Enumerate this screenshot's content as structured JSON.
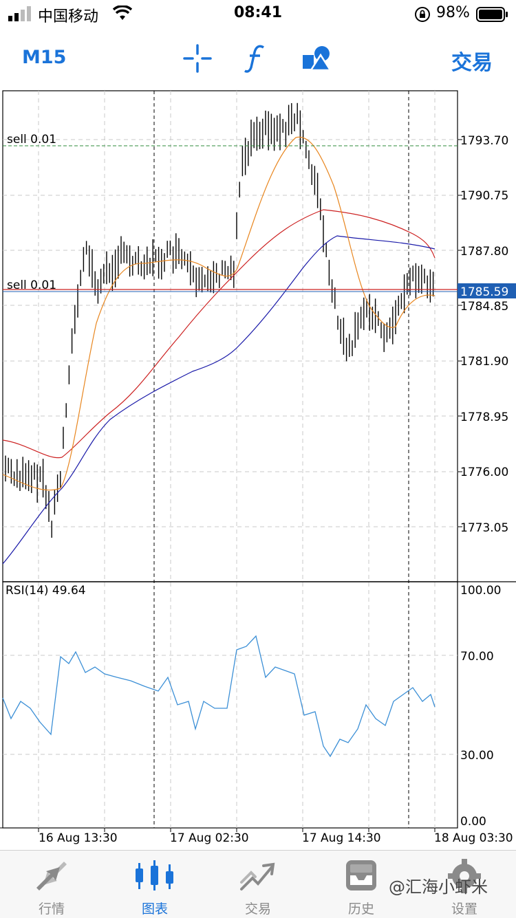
{
  "status": {
    "carrier": "中国移动",
    "time": "08:41",
    "battery": "98%"
  },
  "toolbar": {
    "timeframe": "M15",
    "trade_label": "交易",
    "icons": [
      "crosshair-icon",
      "function-icon",
      "objects-icon"
    ]
  },
  "chart": {
    "price_levels": [
      "1793.70",
      "1790.75",
      "1787.80",
      "1784.85",
      "1781.90",
      "1778.95",
      "1776.00",
      "1773.05"
    ],
    "current_price": "1785.59",
    "orders": [
      {
        "label": "sell 0.01",
        "price": 1793.4
      },
      {
        "label": "sell 0.01",
        "price": 1785.59
      }
    ],
    "rsi_label": "RSI(14) 49.64",
    "rsi_levels": [
      "100.00",
      "70.00",
      "30.00",
      "0.00"
    ],
    "time_labels": [
      "16 Aug 13:30",
      "17 Aug 02:30",
      "17 Aug 14:30",
      "18 Aug 03:30"
    ],
    "colors": {
      "ma_fast": "#e8861f",
      "ma_mid": "#cc2020",
      "ma_slow": "#1818a8",
      "rsi": "#3b8fd6",
      "price_tag": "#1f5fb3",
      "accent": "#1a73d9"
    }
  },
  "tabs": [
    {
      "label": "行情",
      "icon": "quotes-icon",
      "active": false
    },
    {
      "label": "图表",
      "icon": "chart-icon",
      "active": true
    },
    {
      "label": "交易",
      "icon": "trade-icon",
      "active": false
    },
    {
      "label": "历史",
      "icon": "history-icon",
      "active": false
    },
    {
      "label": "设置",
      "icon": "settings-icon",
      "active": false
    }
  ],
  "watermark": "@汇海小虾米"
}
